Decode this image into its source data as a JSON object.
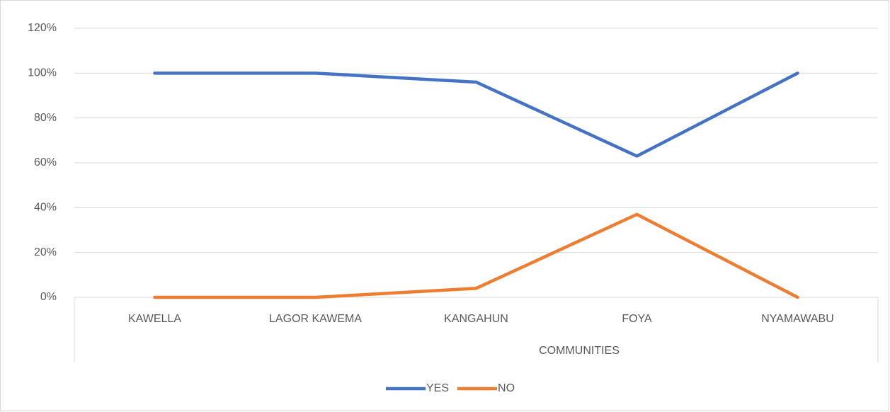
{
  "chart_data": {
    "type": "line",
    "x_label": "COMMUNITIES",
    "categories": [
      "KAWELLA",
      "LAGOR KAWEMA",
      "KANGAHUN",
      "FOYA",
      "NYAMAWABU"
    ],
    "series": [
      {
        "name": "YES",
        "color": "#4472c4",
        "values": [
          100,
          100,
          96,
          63,
          100
        ]
      },
      {
        "name": "NO",
        "color": "#ed7d31",
        "values": [
          0,
          0,
          4,
          37,
          0
        ]
      }
    ],
    "ylim": [
      0,
      120
    ],
    "yticks": [
      {
        "value": 0,
        "label": "0%"
      },
      {
        "value": 20,
        "label": "20%"
      },
      {
        "value": 40,
        "label": "40%"
      },
      {
        "value": 60,
        "label": "60%"
      },
      {
        "value": 80,
        "label": "80%"
      },
      {
        "value": 100,
        "label": "100%"
      },
      {
        "value": 120,
        "label": "120%"
      }
    ],
    "grid": true,
    "legend": "bottom"
  }
}
